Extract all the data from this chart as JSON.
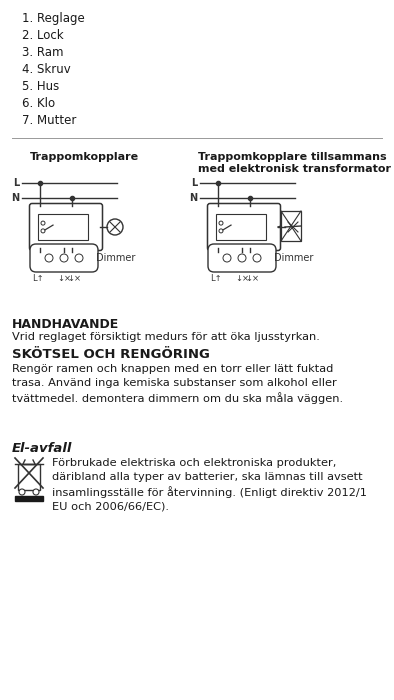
{
  "bg_color": "#ffffff",
  "text_color": "#1a1a1a",
  "list_items": [
    "1. Reglage",
    "2. Lock",
    "3. Ram",
    "4. Skruv",
    "5. Hus",
    "6. Klo",
    "7. Mutter"
  ],
  "diagram_label_left": "Trappomkopplare",
  "diagram_label_right": "Trappomkopplare tillsammans\nmed elektronisk transformator",
  "section1_title": "HANDHAVANDE",
  "section1_text": "Vrid reglaget försiktigt medurs för att öka ljusstyrkan.",
  "section2_title": "SKÖTSEL OCH RENGÖRING",
  "section2_text": "Rengör ramen och knappen med en torr eller lätt fuktad\ntrasa. Använd inga kemiska substanser som alkohol eller\ntvättmedel. demontera dimmern om du ska måla väggen.",
  "section3_title": "El-avfall",
  "section3_text": "Förbrukade elektriska och elektroniska produkter,\ndäribland alla typer av batterier, ska lämnas till avsett\ninsamlingsställe för återvinning. (Enligt direktiv 2012/1\nEU och 2006/66/EC)."
}
